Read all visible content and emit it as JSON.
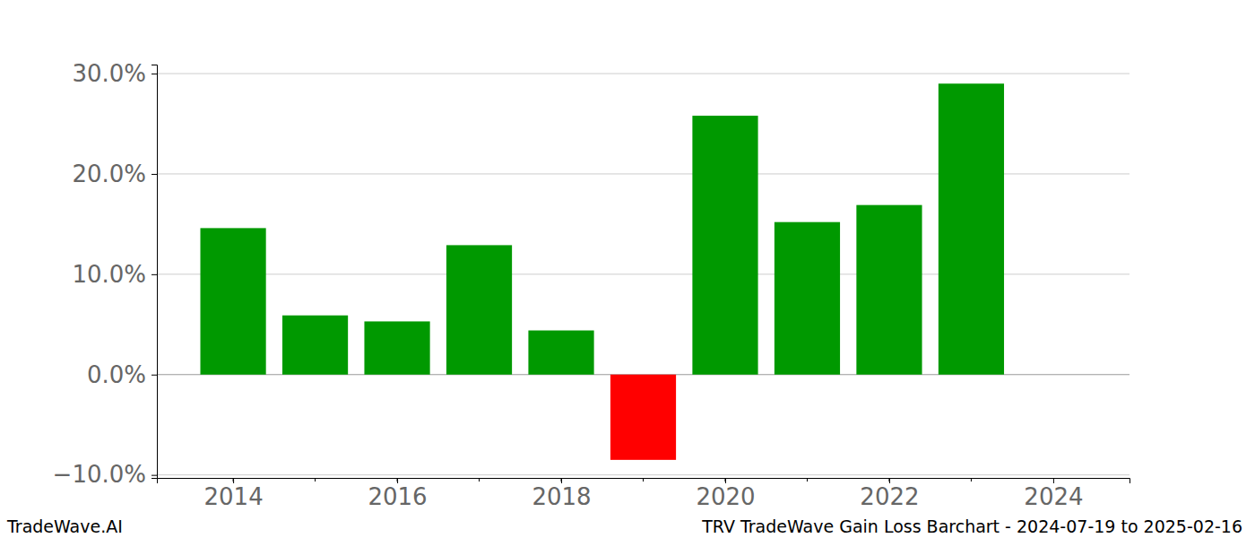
{
  "chart_data": {
    "type": "bar",
    "title": "TRV TradeWave Gain Loss Barchart - 2024-07-19 to 2025-02-16",
    "annotations": [
      "TradeWave.AI"
    ],
    "x": [
      2014,
      2015,
      2016,
      2017,
      2018,
      2019,
      2020,
      2021,
      2022,
      2023
    ],
    "values": [
      14.6,
      5.9,
      5.3,
      12.9,
      4.4,
      -8.5,
      25.8,
      15.2,
      16.9,
      29.0
    ],
    "colors": [
      "#009900",
      "#009900",
      "#009900",
      "#009900",
      "#009900",
      "#ff0000",
      "#009900",
      "#009900",
      "#009900",
      "#009900"
    ],
    "xlim": [
      2013.07,
      2024.93
    ],
    "xticks": [
      2014,
      2016,
      2018,
      2020,
      2022,
      2024
    ],
    "ylim": [
      -10.3,
      30.9
    ],
    "yticks": [
      {
        "value": -10,
        "label": "−10.0%"
      },
      {
        "value": 0,
        "label": "0.0%"
      },
      {
        "value": 10,
        "label": "10.0%"
      },
      {
        "value": 20,
        "label": "20.0%"
      },
      {
        "value": 30,
        "label": "30.0%"
      }
    ],
    "grid": true
  }
}
